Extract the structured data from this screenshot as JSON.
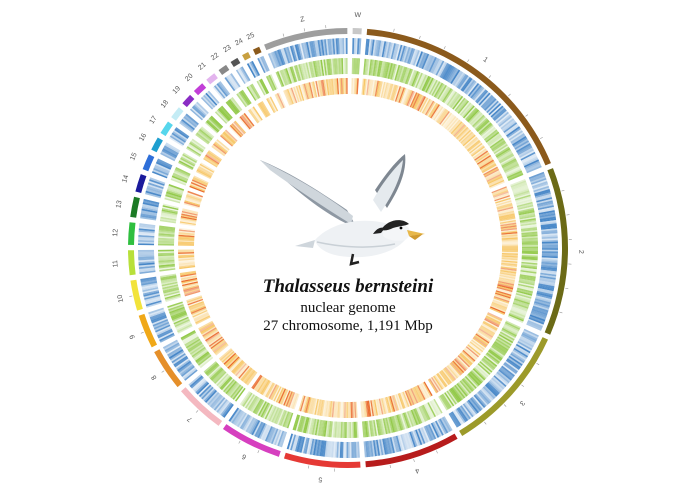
{
  "diagram": {
    "species_name": "Thalasseus bernsteini",
    "subtitle": "nuclear genome",
    "stats": "27 chromosome, 1,191 Mbp",
    "chromosomes": [
      {
        "label": "1",
        "size": 210,
        "color": "#8b5a1c"
      },
      {
        "label": "2",
        "size": 150,
        "color": "#6b6a16"
      },
      {
        "label": "3",
        "size": 115,
        "color": "#9c9a2a"
      },
      {
        "label": "4",
        "size": 85,
        "color": "#b71c1c"
      },
      {
        "label": "5",
        "size": 68,
        "color": "#e53935"
      },
      {
        "label": "6",
        "size": 55,
        "color": "#d63fbf"
      },
      {
        "label": "7",
        "size": 45,
        "color": "#f4b8c0"
      },
      {
        "label": "8",
        "size": 37,
        "color": "#e58f2a"
      },
      {
        "label": "9",
        "size": 30,
        "color": "#f0a818"
      },
      {
        "label": "10",
        "size": 27,
        "color": "#f2e33a"
      },
      {
        "label": "11",
        "size": 22,
        "color": "#b8e03a"
      },
      {
        "label": "12",
        "size": 20,
        "color": "#2fbf3f"
      },
      {
        "label": "13",
        "size": 18,
        "color": "#1b7a25"
      },
      {
        "label": "14",
        "size": 16,
        "color": "#1a1a9c"
      },
      {
        "label": "15",
        "size": 14,
        "color": "#2e6fd9"
      },
      {
        "label": "16",
        "size": 12,
        "color": "#1e9fd0"
      },
      {
        "label": "17",
        "size": 12,
        "color": "#56d6ec"
      },
      {
        "label": "18",
        "size": 11,
        "color": "#c4ecf5"
      },
      {
        "label": "19",
        "size": 10,
        "color": "#8a2cc4"
      },
      {
        "label": "20",
        "size": 10,
        "color": "#c23ed8"
      },
      {
        "label": "21",
        "size": 9,
        "color": "#e3b4ee"
      },
      {
        "label": "22",
        "size": 8,
        "color": "#888888"
      },
      {
        "label": "23",
        "size": 7,
        "color": "#555555"
      },
      {
        "label": "24",
        "size": 6,
        "color": "#c8a040"
      },
      {
        "label": "25",
        "size": 6,
        "color": "#8b5a1c"
      },
      {
        "label": "Z",
        "size": 75,
        "color": "#9e9e9e"
      },
      {
        "label": "W",
        "size": 8,
        "color": "#c8c8c8"
      }
    ],
    "track_colors": {
      "outer_track": "#3b7fc4",
      "middle_track": "#8cc63f",
      "inner_track": "#f5b942",
      "inner_track_hot": "#e8601c",
      "bird_body": "#eef1f4",
      "bird_wing": "#9aa4ae",
      "bird_cap": "#222222",
      "bird_bill": "#e8b84a"
    },
    "bird_image": "tern-illustration"
  }
}
